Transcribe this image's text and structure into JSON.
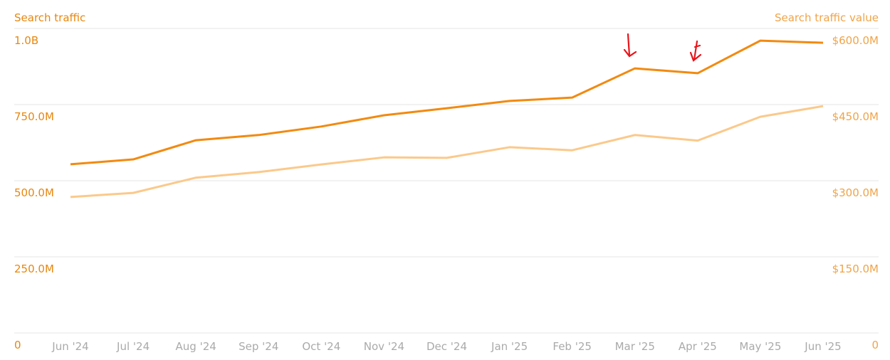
{
  "chart_data": {
    "type": "line",
    "y_label": "Search traffic",
    "y2_label": "Search traffic value",
    "categories": [
      "Jun '24",
      "Jul '24",
      "Aug '24",
      "Sep '24",
      "Oct '24",
      "Nov '24",
      "Dec '24",
      "Jan '25",
      "Feb '25",
      "Mar '25",
      "Apr '25",
      "May '25",
      "Jun '25"
    ],
    "series": [
      {
        "name": "Search traffic",
        "color": "#f28a10",
        "axis": "y",
        "values": [
          554000000,
          570000000,
          633000000,
          650000000,
          678000000,
          715000000,
          738000000,
          762000000,
          773000000,
          869000000,
          853000000,
          960000000,
          953000000
        ]
      },
      {
        "name": "Search traffic value",
        "color": "#fbc98b",
        "axis": "y2",
        "values": [
          268000000,
          276000000,
          306000000,
          317000000,
          332000000,
          346000000,
          345000000,
          366000000,
          360000000,
          390000000,
          379000000,
          426000000,
          447000000
        ]
      }
    ],
    "ylim": [
      0,
      1000000000
    ],
    "yticks": [
      0,
      {
        "value": 250000000,
        "label": "250.0M"
      },
      {
        "value": 500000000,
        "label": "500.0M"
      },
      {
        "value": 750000000,
        "label": "750.0M"
      },
      {
        "value": 1000000000,
        "label": "1.0B"
      }
    ],
    "y2lim": [
      0,
      600000000
    ],
    "y2ticks": [
      0,
      {
        "value": 150000000,
        "label": "$150.0M"
      },
      {
        "value": 300000000,
        "label": "$300.0M"
      },
      {
        "value": 450000000,
        "label": "$450.0M"
      },
      {
        "value": 600000000,
        "label": "$600.0M"
      }
    ],
    "grid": true
  }
}
